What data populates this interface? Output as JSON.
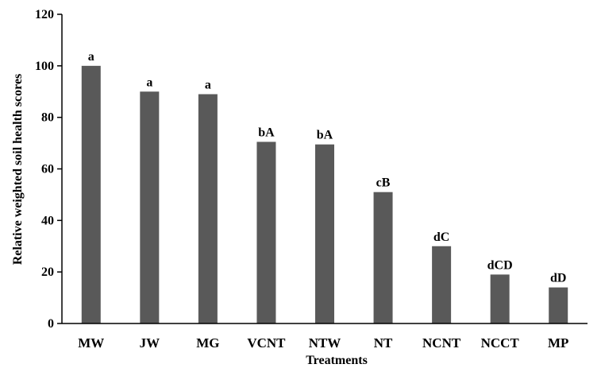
{
  "chart_data": {
    "type": "bar",
    "title": "",
    "xlabel": "Treatments",
    "ylabel": "Relative weighted soil health scores",
    "ylim": [
      0,
      120
    ],
    "yticks": [
      0,
      20,
      40,
      60,
      80,
      100,
      120
    ],
    "categories": [
      "MW",
      "JW",
      "MG",
      "VCNT",
      "NTW",
      "NT",
      "NCNT",
      "NCCT",
      "MP"
    ],
    "values": [
      100,
      90,
      89,
      70.5,
      69.5,
      51,
      30,
      19,
      14
    ],
    "data_labels": [
      "a",
      "a",
      "a",
      "bA",
      "bA",
      "cB",
      "dC",
      "dCD",
      "dD"
    ],
    "grid": false,
    "legend": "none",
    "bar_color": "#595959"
  }
}
